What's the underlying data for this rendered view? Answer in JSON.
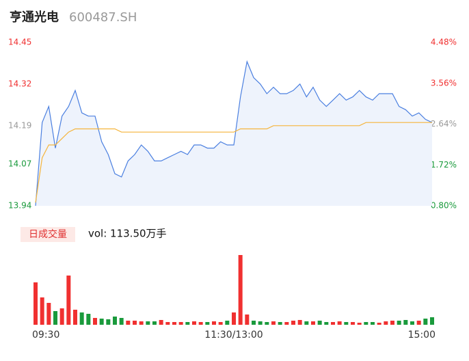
{
  "header": {
    "name": "亨通光电",
    "code": "600487.SH"
  },
  "chart_data": [
    {
      "type": "line",
      "x": [
        0,
        4,
        8,
        12,
        16,
        20,
        24,
        28,
        32,
        36,
        40,
        44,
        48,
        52,
        56,
        60,
        64,
        68,
        72,
        76,
        80,
        84,
        88,
        92,
        96,
        100,
        104,
        108,
        112,
        116,
        120,
        124,
        128,
        132,
        136,
        140,
        144,
        148,
        152,
        156,
        160,
        164,
        168,
        172,
        176,
        180,
        184,
        188,
        192,
        196,
        200,
        204,
        208,
        212,
        216,
        220,
        224,
        228,
        232,
        236,
        240
      ],
      "xlim": [
        0,
        240
      ],
      "xticks": [
        {
          "value": 0,
          "label": "09:30"
        },
        {
          "value": 120,
          "label": "11:30/13:00"
        },
        {
          "value": 240,
          "label": "15:00"
        }
      ],
      "ylim": [
        13.94,
        14.45
      ],
      "yticks": [
        13.94,
        14.07,
        14.19,
        14.32,
        14.45
      ],
      "y2lim": [
        0.8,
        4.48
      ],
      "y2ticks": [
        {
          "value": 0.8,
          "label": "0.80%"
        },
        {
          "value": 1.72,
          "label": "1.72%"
        },
        {
          "value": 2.64,
          "label": "2.64%"
        },
        {
          "value": 3.56,
          "label": "3.56%"
        },
        {
          "value": 4.48,
          "label": "4.48%"
        }
      ],
      "up_color": "#f03030",
      "flat_color": "#999999",
      "down_color": "#1a9a3c",
      "grid": false,
      "series": [
        {
          "name": "price",
          "color": "#4a7fe0",
          "area_color": "#eef3fc",
          "values": [
            13.94,
            14.2,
            14.25,
            14.12,
            14.22,
            14.25,
            14.3,
            14.23,
            14.22,
            14.22,
            14.14,
            14.1,
            14.04,
            14.03,
            14.08,
            14.1,
            14.13,
            14.11,
            14.08,
            14.08,
            14.09,
            14.1,
            14.11,
            14.1,
            14.13,
            14.13,
            14.12,
            14.12,
            14.14,
            14.13,
            14.13,
            14.28,
            14.39,
            14.34,
            14.32,
            14.29,
            14.31,
            14.29,
            14.29,
            14.3,
            14.32,
            14.28,
            14.31,
            14.27,
            14.25,
            14.27,
            14.29,
            14.27,
            14.28,
            14.3,
            14.28,
            14.27,
            14.29,
            14.29,
            14.29,
            14.25,
            14.24,
            14.22,
            14.23,
            14.21,
            14.2
          ]
        },
        {
          "name": "average",
          "color": "#f5b43a",
          "values": [
            13.95,
            14.09,
            14.13,
            14.13,
            14.15,
            14.17,
            14.18,
            14.18,
            14.18,
            14.18,
            14.18,
            14.18,
            14.18,
            14.17,
            14.17,
            14.17,
            14.17,
            14.17,
            14.17,
            14.17,
            14.17,
            14.17,
            14.17,
            14.17,
            14.17,
            14.17,
            14.17,
            14.17,
            14.17,
            14.17,
            14.17,
            14.18,
            14.18,
            14.18,
            14.18,
            14.18,
            14.19,
            14.19,
            14.19,
            14.19,
            14.19,
            14.19,
            14.19,
            14.19,
            14.19,
            14.19,
            14.19,
            14.19,
            14.19,
            14.19,
            14.2,
            14.2,
            14.2,
            14.2,
            14.2,
            14.2,
            14.2,
            14.2,
            14.2,
            14.2,
            14.2
          ]
        }
      ]
    },
    {
      "type": "bar",
      "label": "日成交量",
      "volume_label": "vol: 113.50万手",
      "x": [
        0,
        4,
        8,
        12,
        16,
        20,
        24,
        28,
        32,
        36,
        40,
        44,
        48,
        52,
        56,
        60,
        64,
        68,
        72,
        76,
        80,
        84,
        88,
        92,
        96,
        100,
        104,
        108,
        112,
        116,
        120,
        124,
        128,
        132,
        136,
        140,
        144,
        148,
        152,
        156,
        160,
        164,
        168,
        172,
        176,
        180,
        184,
        188,
        192,
        196,
        200,
        204,
        208,
        212,
        216,
        220,
        224,
        228,
        232,
        236,
        240
      ],
      "xlim": [
        0,
        240
      ],
      "ylim": [
        0,
        10
      ],
      "values": [
        6.2,
        4.0,
        3.2,
        2.0,
        2.4,
        7.2,
        2.2,
        1.8,
        1.6,
        1.0,
        0.9,
        0.8,
        1.2,
        1.0,
        0.6,
        0.6,
        0.5,
        0.5,
        0.5,
        0.7,
        0.4,
        0.4,
        0.4,
        0.4,
        0.5,
        0.4,
        0.4,
        0.5,
        0.4,
        0.6,
        1.8,
        10.2,
        1.5,
        0.6,
        0.5,
        0.4,
        0.5,
        0.4,
        0.4,
        0.6,
        0.7,
        0.5,
        0.5,
        0.6,
        0.4,
        0.4,
        0.5,
        0.4,
        0.4,
        0.3,
        0.4,
        0.4,
        0.3,
        0.5,
        0.6,
        0.6,
        0.7,
        0.5,
        0.6,
        0.9,
        1.1
      ]
    }
  ]
}
